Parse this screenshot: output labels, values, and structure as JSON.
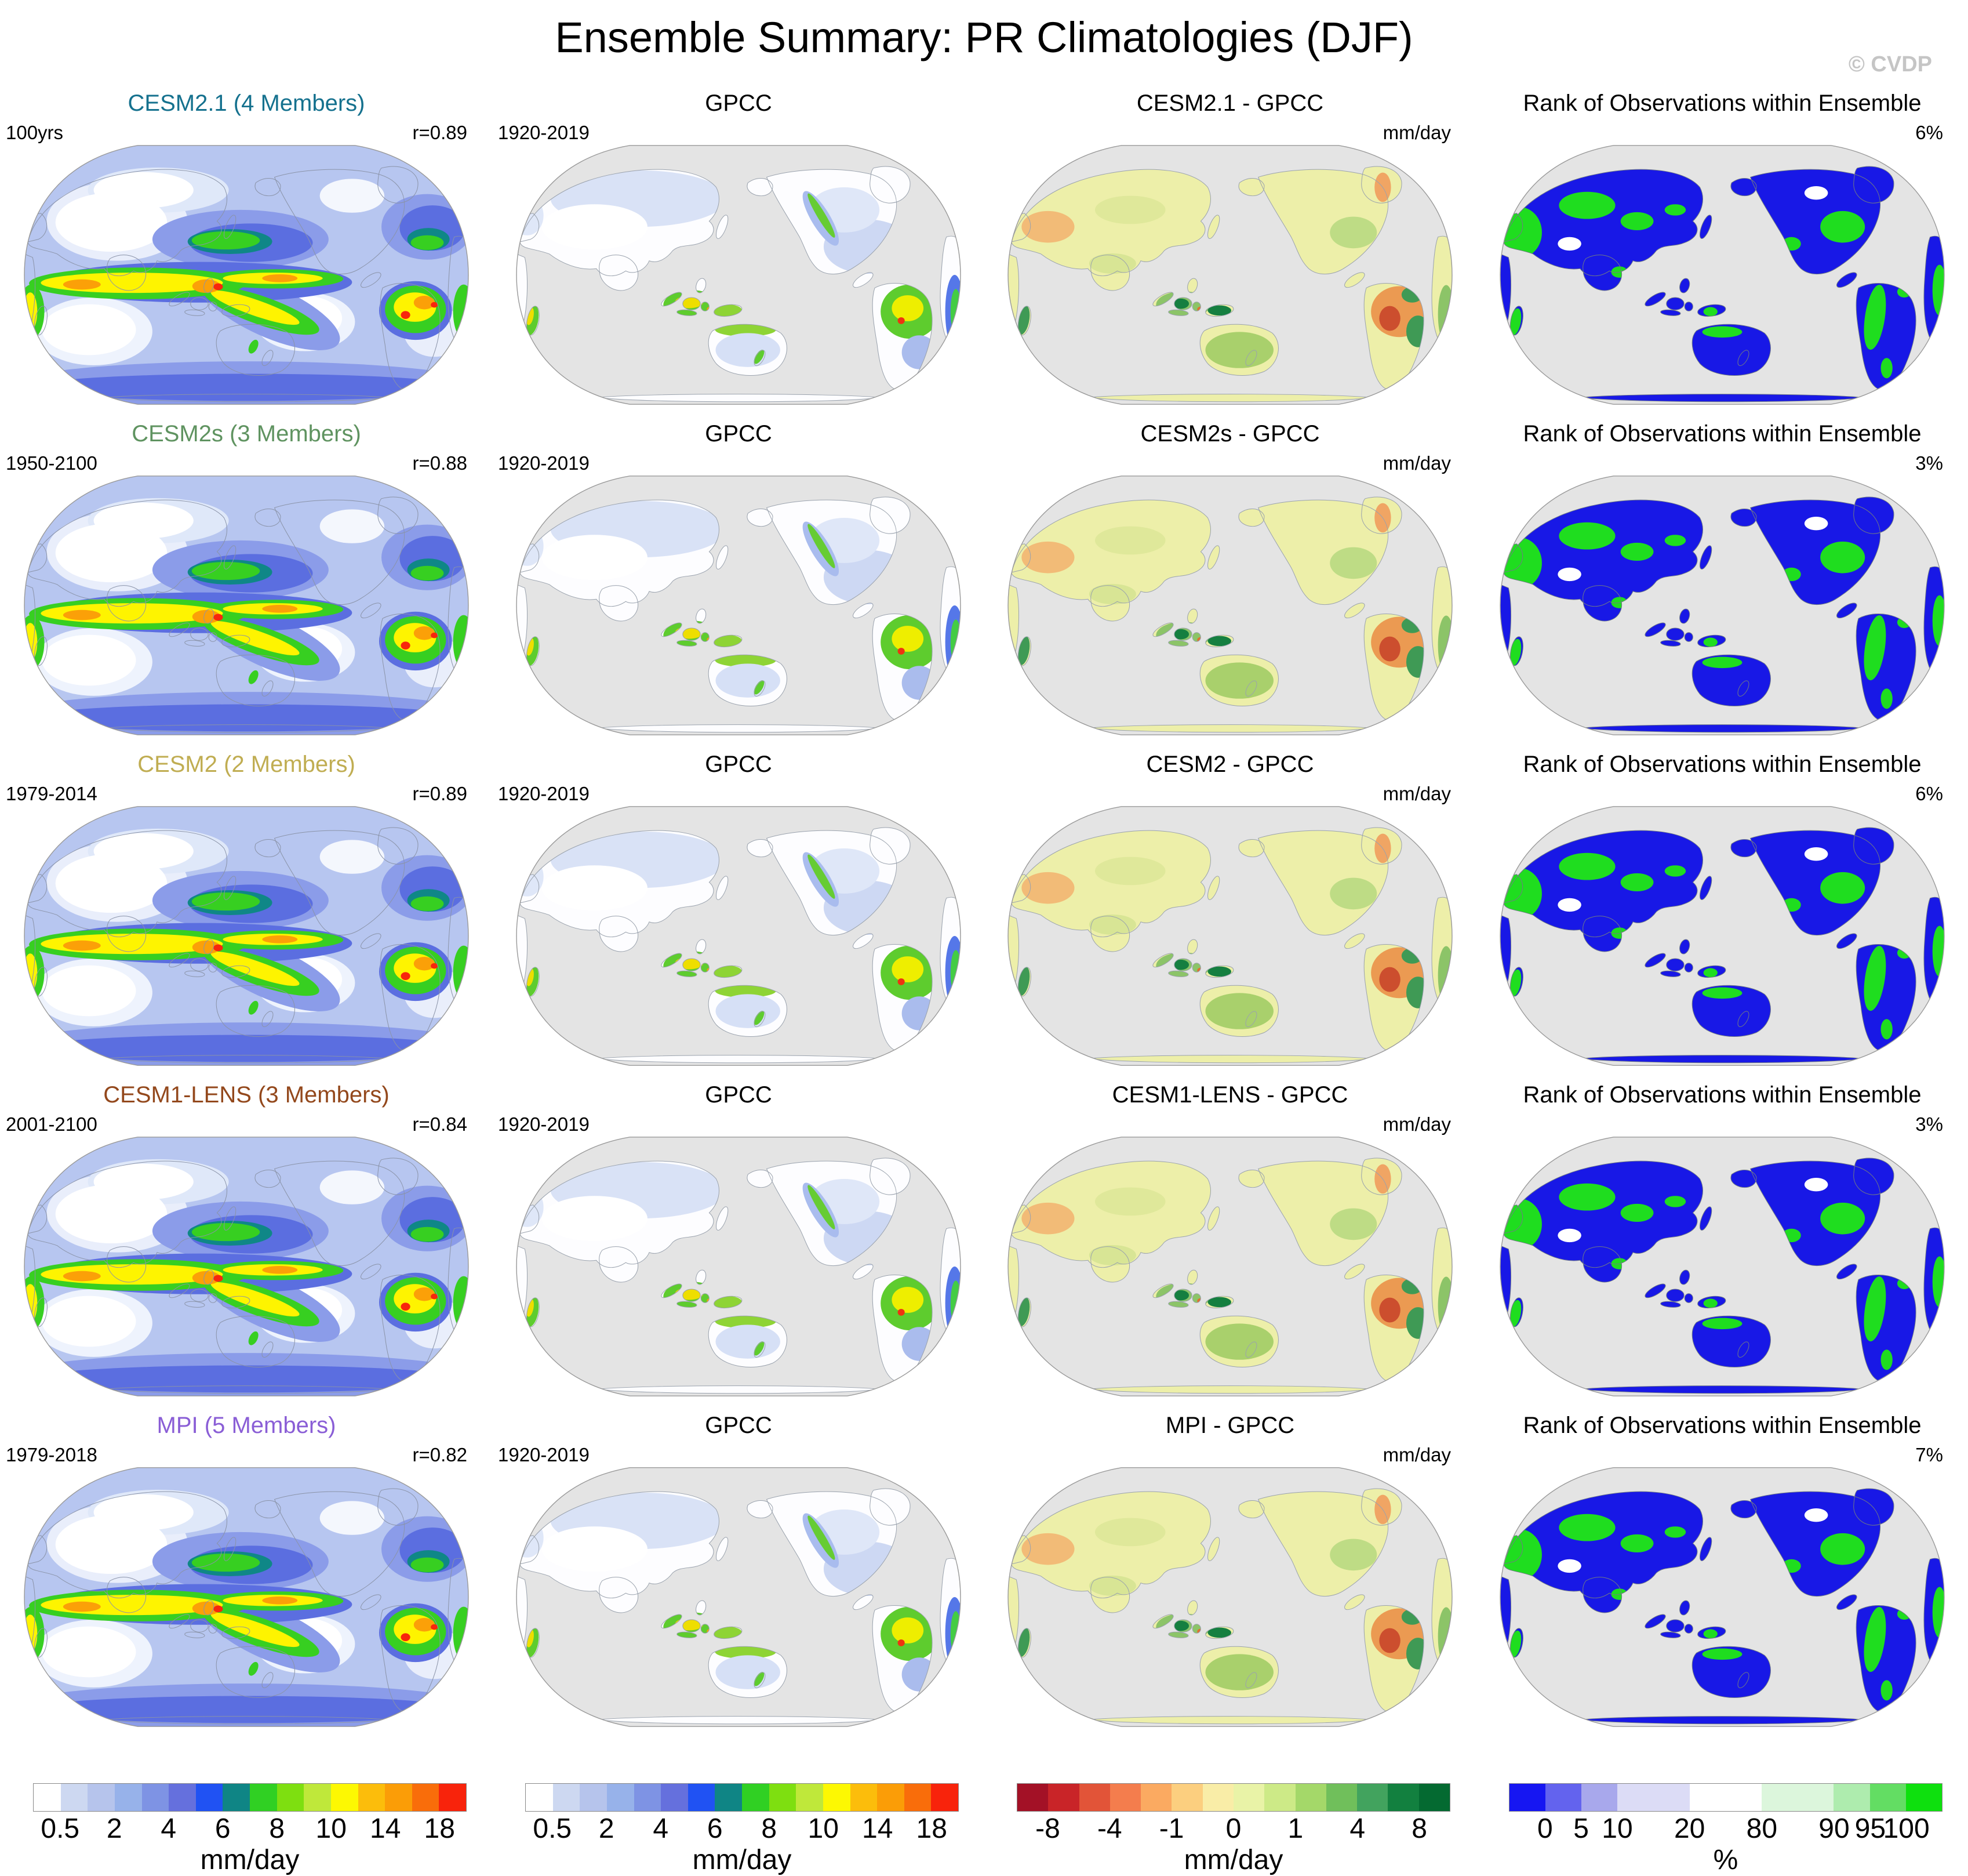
{
  "title": "Ensemble Summary: PR Climatologies (DJF)",
  "watermark": "© CVDP",
  "rows": [
    {
      "model": {
        "title": "CESM2.1 (4 Members)",
        "title_color": "#15718e",
        "left_label": "100yrs",
        "right_label": "r=0.89"
      },
      "obs": {
        "title": "GPCC",
        "left_label": "1920-2019"
      },
      "diff": {
        "title": "CESM2.1 - GPCC",
        "right_label": "mm/day"
      },
      "rank": {
        "title": "Rank of Observations within Ensemble",
        "right_label": "6%"
      }
    },
    {
      "model": {
        "title": "CESM2s (3 Members)",
        "title_color": "#5f9360",
        "left_label": "1950-2100",
        "right_label": "r=0.88"
      },
      "obs": {
        "title": "GPCC",
        "left_label": "1920-2019"
      },
      "diff": {
        "title": "CESM2s - GPCC",
        "right_label": "mm/day"
      },
      "rank": {
        "title": "Rank of Observations within Ensemble",
        "right_label": "3%"
      }
    },
    {
      "model": {
        "title": "CESM2 (2 Members)",
        "title_color": "#c0ad52",
        "left_label": "1979-2014",
        "right_label": "r=0.89"
      },
      "obs": {
        "title": "GPCC",
        "left_label": "1920-2019"
      },
      "diff": {
        "title": "CESM2 - GPCC",
        "right_label": "mm/day"
      },
      "rank": {
        "title": "Rank of Observations within Ensemble",
        "right_label": "6%"
      }
    },
    {
      "model": {
        "title": "CESM1-LENS (3 Members)",
        "title_color": "#93481c",
        "left_label": "2001-2100",
        "right_label": "r=0.84"
      },
      "obs": {
        "title": "GPCC",
        "left_label": "1920-2019"
      },
      "diff": {
        "title": "CESM1-LENS - GPCC",
        "right_label": "mm/day"
      },
      "rank": {
        "title": "Rank of Observations within Ensemble",
        "right_label": "3%"
      }
    },
    {
      "model": {
        "title": "MPI (5 Members)",
        "title_color": "#8a5ed6",
        "left_label": "1979-2018",
        "right_label": "r=0.82"
      },
      "obs": {
        "title": "GPCC",
        "left_label": "1920-2019"
      },
      "diff": {
        "title": "MPI - GPCC",
        "right_label": "mm/day"
      },
      "rank": {
        "title": "Rank of Observations within Ensemble",
        "right_label": "7%"
      }
    }
  ],
  "colorbars": [
    {
      "name": "precip-scale-model",
      "unit": "mm/day",
      "colors": [
        "#ffffff",
        "#cdd8f1",
        "#b6c4ec",
        "#97b2ea",
        "#7e93e4",
        "#6570dd",
        "#2052f3",
        "#0f8585",
        "#30d023",
        "#7edf10",
        "#bfe83a",
        "#fdf802",
        "#fcbd0b",
        "#fb9d07",
        "#f96d0a",
        "#f8230b"
      ],
      "widths": [
        1,
        1,
        1,
        1,
        1,
        1,
        1,
        1,
        1,
        1,
        1,
        1,
        1,
        1,
        1,
        1
      ],
      "tick_labels": [
        "0.5",
        "2",
        "4",
        "6",
        "8",
        "10",
        "14",
        "18"
      ],
      "tick_units": [
        1,
        3,
        5,
        7,
        9,
        11,
        13,
        15
      ]
    },
    {
      "name": "precip-scale-obs",
      "unit": "mm/day",
      "colors": [
        "#ffffff",
        "#cdd8f1",
        "#b6c4ec",
        "#97b2ea",
        "#7e93e4",
        "#6570dd",
        "#2052f3",
        "#0f8585",
        "#30d023",
        "#7edf10",
        "#bfe83a",
        "#fdf802",
        "#fcbd0b",
        "#fb9d07",
        "#f96d0a",
        "#f8230b"
      ],
      "widths": [
        1,
        1,
        1,
        1,
        1,
        1,
        1,
        1,
        1,
        1,
        1,
        1,
        1,
        1,
        1,
        1
      ],
      "tick_labels": [
        "0.5",
        "2",
        "4",
        "6",
        "8",
        "10",
        "14",
        "18"
      ],
      "tick_units": [
        1,
        3,
        5,
        7,
        9,
        11,
        13,
        15
      ]
    },
    {
      "name": "diff-scale",
      "unit": "mm/day",
      "colors": [
        "#a31126",
        "#c92428",
        "#e25438",
        "#f47d4d",
        "#fbaa61",
        "#fccf7f",
        "#f9eda7",
        "#e9f3a7",
        "#cdea87",
        "#a4d869",
        "#70bf5b",
        "#42a35e",
        "#12803f",
        "#046a31"
      ],
      "widths": [
        1,
        1,
        1,
        1,
        1,
        1,
        1,
        1,
        1,
        1,
        1,
        1,
        1,
        1
      ],
      "tick_labels": [
        "-8",
        "-4",
        "-1",
        "0",
        "1",
        "4",
        "8"
      ],
      "tick_units": [
        1,
        3,
        5,
        7,
        9,
        11,
        13
      ]
    },
    {
      "name": "rank-scale",
      "unit": "%",
      "colors": [
        "#1616f2",
        "#6363ee",
        "#a8a8ec",
        "#dcdcf6",
        "#ffffff",
        "#dcf6dc",
        "#aeecae",
        "#63dd63",
        "#0ee00e"
      ],
      "widths": [
        1,
        1,
        1,
        2,
        2,
        2,
        1,
        1,
        1
      ],
      "tick_labels": [
        "0",
        "5",
        "10",
        "20",
        "80",
        "90",
        "95",
        "100"
      ],
      "tick_units": [
        1,
        2,
        3,
        5,
        7,
        9,
        10,
        11
      ]
    }
  ],
  "chart_data": {
    "type": "heatmap",
    "title": "Ensemble Summary: PR Climatologies (DJF)",
    "description": "5x4 grid of global precipitation climatology maps (Winkel-tripel, Pacific-centered)",
    "rows": [
      {
        "model": "CESM2.1",
        "members": 4,
        "period": "100yrs",
        "pattern_correlation_r": 0.89,
        "obs": "GPCC",
        "obs_period": "1920-2019",
        "rank_pct": "6%"
      },
      {
        "model": "CESM2s",
        "members": 3,
        "period": "1950-2100",
        "pattern_correlation_r": 0.88,
        "obs": "GPCC",
        "obs_period": "1920-2019",
        "rank_pct": "3%"
      },
      {
        "model": "CESM2",
        "members": 2,
        "period": "1979-2014",
        "pattern_correlation_r": 0.89,
        "obs": "GPCC",
        "obs_period": "1920-2019",
        "rank_pct": "6%"
      },
      {
        "model": "CESM1-LENS",
        "members": 3,
        "period": "2001-2100",
        "pattern_correlation_r": 0.84,
        "obs": "GPCC",
        "obs_period": "1920-2019",
        "rank_pct": "3%"
      },
      {
        "model": "MPI",
        "members": 5,
        "period": "1979-2018",
        "pattern_correlation_r": 0.82,
        "obs": "GPCC",
        "obs_period": "1920-2019",
        "rank_pct": "7%"
      }
    ],
    "column_types": [
      "model ensemble mean (mm/day)",
      "GPCC observations (mm/day)",
      "model minus GPCC (mm/day)",
      "rank of observations within ensemble (%)"
    ],
    "precip_scale_ticks_mm_day": [
      0.5,
      2,
      4,
      6,
      8,
      10,
      14,
      18
    ],
    "diff_scale_ticks_mm_day": [
      -8,
      -4,
      -1,
      0,
      1,
      4,
      8
    ],
    "rank_scale_ticks_pct": [
      0,
      5,
      10,
      20,
      80,
      90,
      95,
      100
    ]
  }
}
